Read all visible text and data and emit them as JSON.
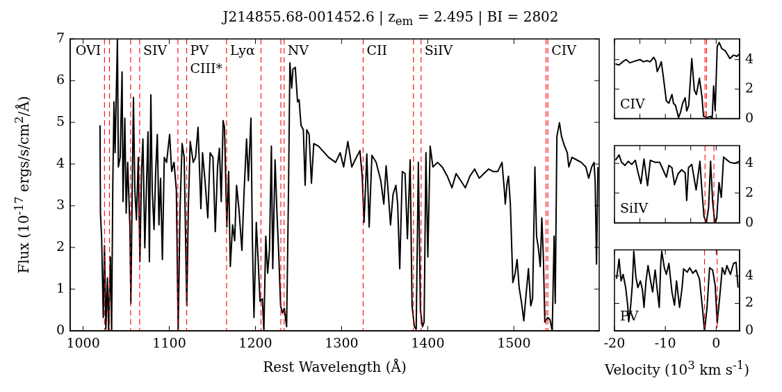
{
  "chart_data": [
    {
      "type": "line",
      "title": "J214855.68-001452.6 | z$_{em}$ = 2.495 | BI = 2802",
      "xlabel": "Rest Wavelength (Å)",
      "ylabel": "Flux (10$^{-17}$ ergs/s/cm$^{2}$/Å)",
      "x": [
        1019.6,
        1020.1,
        1021.5,
        1023.4,
        1024.8,
        1026.4,
        1028.2,
        1029.6,
        1031.7,
        1033.1,
        1034.4,
        1035.8,
        1037.1,
        1039.8,
        1040.9,
        1043.0,
        1045.2,
        1046.3,
        1048.4,
        1050.0,
        1051.7,
        1054.3,
        1055.4,
        1057.0,
        1058.4,
        1060.0,
        1061.9,
        1064.0,
        1065.9,
        1067.8,
        1069.4,
        1071.6,
        1073.7,
        1075.3,
        1076.9,
        1078.6,
        1080.2,
        1082.3,
        1084.2,
        1086.1,
        1088.0,
        1089.9,
        1092.0,
        1094.2,
        1096.9,
        1100.4,
        1102.8,
        1105.5,
        1108.2,
        1110.3,
        1112.5,
        1114.9,
        1117.3,
        1120.3,
        1122.1,
        1124.3,
        1127.8,
        1130.5,
        1133.4,
        1136.7,
        1138.6,
        1141.5,
        1144.7,
        1147.4,
        1150.7,
        1153.4,
        1156.0,
        1158.2,
        1160.3,
        1162.5,
        1164.1,
        1166.8,
        1168.9,
        1170.8,
        1173.5,
        1175.9,
        1178.1,
        1180.8,
        1184.3,
        1186.7,
        1189.7,
        1191.8,
        1194.8,
        1196.4,
        1198.3,
        1201.0,
        1203.1,
        1205.3,
        1208.0,
        1209.8,
        1212.0,
        1214.2,
        1216.3,
        1218.5,
        1220.1,
        1222.8,
        1225.0,
        1227.1,
        1229.2,
        1231.4,
        1233.5,
        1236.2,
        1238.4,
        1240.0,
        1242.1,
        1243.5,
        1246.2,
        1248.9,
        1250.7,
        1252.9,
        1255.6,
        1257.7,
        1259.6,
        1262.3,
        1265.0,
        1267.7,
        1273.1,
        1284.9,
        1293.0,
        1298.4,
        1302.4,
        1307.3,
        1311.8,
        1317.2,
        1321.3,
        1323.9,
        1326.1,
        1329.3,
        1332.0,
        1335.2,
        1340.1,
        1345.5,
        1349.0,
        1351.7,
        1354.3,
        1356.8,
        1359.7,
        1363.0,
        1365.1,
        1367.5,
        1370.5,
        1373.7,
        1376.4,
        1379.6,
        1381.8,
        1384.5,
        1386.6,
        1389.1,
        1391.5,
        1393.9,
        1395.8,
        1397.9,
        1400.1,
        1402.8,
        1406.0,
        1411.4,
        1416.8,
        1422.7,
        1428.1,
        1432.9,
        1438.3,
        1443.7,
        1449.0,
        1454.4,
        1459.8,
        1465.2,
        1470.6,
        1476.0,
        1481.3,
        1486.2,
        1488.9,
        1490.0,
        1492.1,
        1493.7,
        1495.9,
        1498.8,
        1501.5,
        1503.7,
        1506.1,
        1509.0,
        1511.5,
        1514.2,
        1516.9,
        1519.6,
        1521.7,
        1524.4,
        1526.3,
        1528.4,
        1530.6,
        1532.4,
        1534.3,
        1535.9,
        1539.2,
        1541.9,
        1544.5,
        1546.7,
        1548.0,
        1549.9,
        1552.9,
        1555.3,
        1558.8,
        1562.0,
        1563.7,
        1567.4,
        1572.8,
        1578.2,
        1583.5,
        1586.8,
        1590.3,
        1593.0,
        1594.3,
        1595.9,
        1597.6
      ],
      "series": [
        {
          "color": "#000000",
          "values": [
            4.93,
            2.82,
            2.21,
            0.32,
            2.04,
            0.04,
            1.27,
            0,
            1.77,
            0,
            3.43,
            5.49,
            4.27,
            7.0,
            3.93,
            4.16,
            6.21,
            3.1,
            5.1,
            2.82,
            4.04,
            2.49,
            0.66,
            3.38,
            5.6,
            3.38,
            2.66,
            4.16,
            1.66,
            3.82,
            4.6,
            1.99,
            3.6,
            4.77,
            1.66,
            5.66,
            3.38,
            2.43,
            3.82,
            4.71,
            2.54,
            3.66,
            1.71,
            4.16,
            4.04,
            4.71,
            3.82,
            4.04,
            3.38,
            0,
            2.93,
            4.49,
            4.16,
            0.6,
            2.93,
            4.54,
            4.04,
            4.16,
            4.88,
            2.93,
            4.27,
            3.6,
            2.71,
            4.27,
            4.16,
            2.38,
            3.93,
            4.38,
            3.1,
            5.04,
            4.88,
            2.49,
            3.82,
            1.54,
            2.54,
            2.16,
            3.49,
            2.93,
            1.93,
            3.27,
            4.6,
            3.6,
            5.1,
            2.27,
            0.32,
            2.6,
            1.71,
            0.71,
            0.77,
            0,
            2.27,
            1.38,
            1.93,
            4.43,
            1.49,
            4.1,
            2.82,
            1.82,
            0.6,
            0.43,
            0.54,
            0.1,
            3.38,
            6.43,
            5.82,
            6.27,
            6.32,
            5.49,
            5.54,
            4.93,
            4.82,
            3.49,
            4.82,
            4.71,
            3.54,
            4.49,
            4.43,
            4.16,
            4.04,
            4.27,
            3.93,
            4.54,
            3.93,
            4.16,
            4.32,
            3.71,
            2.6,
            4.24,
            2.49,
            4.21,
            4.04,
            3.6,
            3.04,
            3.96,
            3.27,
            2.54,
            3.27,
            3.49,
            3.04,
            1.49,
            3.82,
            3.77,
            2.21,
            4.1,
            0.6,
            0.1,
            0.04,
            4.04,
            0.49,
            0.1,
            0.21,
            4.27,
            1.77,
            4.43,
            3.93,
            4.04,
            3.93,
            3.71,
            3.43,
            3.77,
            3.6,
            3.43,
            3.71,
            3.88,
            3.66,
            3.77,
            3.88,
            3.82,
            3.82,
            4.04,
            3.38,
            3.04,
            3.54,
            3.71,
            3.04,
            1.16,
            1.38,
            1.71,
            1.04,
            0.66,
            0.24,
            0.88,
            1.49,
            0.6,
            0.77,
            3.93,
            2.27,
            1.99,
            1.54,
            2.71,
            1.71,
            0.21,
            0.32,
            0.27,
            0,
            2.27,
            0.66,
            4.66,
            4.99,
            4.66,
            4.43,
            4.27,
            3.93,
            4.16,
            4.1,
            4.04,
            3.93,
            3.66,
            3.93,
            4.04,
            3.6,
            1.6,
            3.93
          ]
        }
      ],
      "xlim": [
        985,
        1599
      ],
      "ylim": [
        0,
        7
      ],
      "xticks": [
        1000,
        1100,
        1200,
        1300,
        1400,
        1500
      ],
      "yticks": [
        0,
        1,
        2,
        3,
        4,
        5,
        6,
        7
      ],
      "ref_lines": [
        {
          "axis": "x",
          "value": 1024.8,
          "color": "#ff0000",
          "line_style": "dashed"
        },
        {
          "axis": "x",
          "value": 1030.6,
          "color": "#ff0000",
          "line_style": "dashed"
        },
        {
          "axis": "x",
          "value": 1055.1,
          "color": "#ff0000",
          "line_style": "dashed"
        },
        {
          "axis": "x",
          "value": 1065.6,
          "color": "#ff0000",
          "line_style": "dashed"
        },
        {
          "axis": "x",
          "value": 1110.0,
          "color": "#ff0000",
          "line_style": "dashed"
        },
        {
          "axis": "x",
          "value": 1120.2,
          "color": "#ff0000",
          "line_style": "dashed"
        },
        {
          "axis": "x",
          "value": 1166.5,
          "color": "#ff0000",
          "line_style": "dashed"
        },
        {
          "axis": "x",
          "value": 1206.4,
          "color": "#ff0000",
          "line_style": "dashed"
        },
        {
          "axis": "x",
          "value": 1229.5,
          "color": "#ff0000",
          "line_style": "dashed"
        },
        {
          "axis": "x",
          "value": 1233.3,
          "color": "#ff0000",
          "line_style": "dashed"
        },
        {
          "axis": "x",
          "value": 1325.0,
          "color": "#ff0000",
          "line_style": "dashed"
        },
        {
          "axis": "x",
          "value": 1383.4,
          "color": "#ff0000",
          "line_style": "dashed"
        },
        {
          "axis": "x",
          "value": 1392.3,
          "color": "#ff0000",
          "line_style": "dashed"
        },
        {
          "axis": "x",
          "value": 1537.3,
          "color": "#ff0000",
          "line_style": "dashed"
        },
        {
          "axis": "x",
          "value": 1539.4,
          "color": "#ff0000",
          "line_style": "dashed"
        }
      ],
      "annotations": [
        {
          "text": "OVI",
          "x": 1024.8,
          "y": 6.7
        },
        {
          "text": "SIV",
          "x": 1065.6,
          "y": 6.7
        },
        {
          "text": "PV",
          "x": 1120.2,
          "y": 6.7
        },
        {
          "text": "CIII*",
          "x": 1120.2,
          "y": 6.27
        },
        {
          "text": "Lyα",
          "x": 1166.5,
          "y": 6.7
        },
        {
          "text": "NV",
          "x": 1233.3,
          "y": 6.7
        },
        {
          "text": "CII",
          "x": 1325.0,
          "y": 6.7
        },
        {
          "text": "SiIV",
          "x": 1392.3,
          "y": 6.7
        },
        {
          "text": "CIV",
          "x": 1539.4,
          "y": 6.7
        }
      ]
    },
    {
      "type": "line",
      "x": [
        -19.8,
        -19.1,
        -18.4,
        -17.7,
        -17.0,
        -16.4,
        -15.7,
        -15.0,
        -14.3,
        -13.6,
        -13.0,
        -12.3,
        -11.9,
        -11.6,
        -11.1,
        -10.8,
        -10.5,
        -9.8,
        -9.3,
        -8.7,
        -8.4,
        -8.0,
        -7.4,
        -7.0,
        -6.6,
        -6.1,
        -5.8,
        -5.4,
        -4.8,
        -4.3,
        -3.9,
        -3.3,
        -2.8,
        -2.5,
        -1.8,
        -1.1,
        -0.8,
        -0.5,
        -0.2,
        0.2,
        0.6,
        1.1,
        1.8,
        2.7,
        3.4,
        4.1,
        4.5
      ],
      "series": [
        {
          "color": "#000000",
          "values": [
            3.7,
            3.63,
            3.85,
            4.0,
            3.78,
            3.85,
            3.93,
            4.0,
            3.85,
            3.93,
            3.85,
            4.15,
            3.93,
            3.19,
            3.56,
            3.85,
            3.11,
            1.19,
            1.04,
            1.63,
            1.04,
            0.89,
            0.07,
            0.44,
            1.04,
            1.41,
            0.52,
            0.89,
            4.07,
            1.93,
            1.63,
            2.74,
            1.48,
            0.15,
            0.07,
            0.15,
            0,
            2.22,
            0.52,
            4.89,
            5.16,
            4.74,
            4.59,
            4.07,
            4.3,
            4.22,
            4.37
          ]
        }
      ],
      "xlim": [
        -20,
        4.6
      ],
      "ylim": [
        0,
        5.4
      ],
      "xticks": [
        -20,
        -15,
        -10,
        -5,
        0
      ],
      "yticks": [
        0,
        2,
        4
      ],
      "tick_labels": "y",
      "ref_lines": [
        {
          "axis": "x",
          "value": -2.2,
          "color": "#ff0000",
          "line_style": "dashed"
        },
        {
          "axis": "x",
          "value": -1.9,
          "color": "#ff0000",
          "line_style": "dashed"
        }
      ],
      "annotations": [
        "CIV"
      ]
    },
    {
      "type": "line",
      "x": [
        -19.8,
        -19.1,
        -18.6,
        -17.95,
        -17.3,
        -16.6,
        -15.9,
        -15.4,
        -14.8,
        -14.2,
        -13.5,
        -12.95,
        -12.0,
        -11.1,
        -10.45,
        -9.8,
        -9.3,
        -8.7,
        -8.2,
        -7.5,
        -6.8,
        -6.1,
        -5.8,
        -5.45,
        -4.8,
        -3.95,
        -3.2,
        -2.8,
        -2.4,
        -1.95,
        -1.5,
        -1.1,
        -0.7,
        -0.3,
        0.1,
        0.55,
        1.0,
        1.45,
        1.9,
        2.7,
        3.6,
        4.5
      ],
      "series": [
        {
          "color": "#000000",
          "values": [
            4.21,
            4.57,
            4.07,
            3.86,
            4.14,
            3.93,
            4.21,
            3.43,
            2.64,
            4.29,
            2.5,
            4.21,
            4.07,
            4.07,
            3.57,
            3.07,
            3.86,
            3.71,
            2.57,
            3.29,
            3.57,
            3.36,
            1.5,
            3.71,
            3.93,
            2.21,
            4.14,
            2.14,
            0.43,
            0,
            1.0,
            4.14,
            1.43,
            0.07,
            0.29,
            2.71,
            1.71,
            4.43,
            4.29,
            4.07,
            4.0,
            4.14
          ]
        }
      ],
      "xlim": [
        -20,
        4.6
      ],
      "ylim": [
        0,
        5.2
      ],
      "xticks": [
        -20,
        -15,
        -10,
        -5,
        0
      ],
      "yticks": [
        0,
        2,
        4
      ],
      "tick_labels": "y",
      "ref_lines": [
        {
          "axis": "x",
          "value": -2.2,
          "color": "#ff0000",
          "line_style": "dashed"
        },
        {
          "axis": "x",
          "value": -0.45,
          "color": "#ff0000",
          "line_style": "dashed"
        }
      ],
      "annotations": [
        "SiIV"
      ]
    },
    {
      "type": "line",
      "xlabel": "Velocity (10$^{3}$ km s$^{-1}$)",
      "x": [
        -19.6,
        -19.3,
        -19.1,
        -18.7,
        -18.3,
        -17.8,
        -17.4,
        -17.2,
        -16.8,
        -16.5,
        -16.2,
        -15.8,
        -15.4,
        -14.9,
        -14.5,
        -14.2,
        -13.8,
        -13.4,
        -12.9,
        -12.5,
        -12.0,
        -11.6,
        -11.2,
        -10.9,
        -10.7,
        -10.2,
        -9.8,
        -9.3,
        -8.7,
        -8.2,
        -7.8,
        -7.2,
        -6.7,
        -6.4,
        -5.7,
        -5.2,
        -4.6,
        -4.0,
        -3.3,
        -2.8,
        -2.3,
        -1.8,
        -1.3,
        -0.7,
        -0.2,
        0.2,
        0.7,
        1.2,
        1.7,
        2.1,
        2.8,
        3.4,
        3.9,
        4.3
      ],
      "series": [
        {
          "color": "#000000",
          "values": [
            3.79,
            4.59,
            5.23,
            3.63,
            4.11,
            3.15,
            1.87,
            0.67,
            1.87,
            3.31,
            5.79,
            3.95,
            3.15,
            3.63,
            2.99,
            1.71,
            3.63,
            4.75,
            3.63,
            2.83,
            4.43,
            2.99,
            1.71,
            4.91,
            5.79,
            4.59,
            4.11,
            4.91,
            2.83,
            1.87,
            3.63,
            1.71,
            3.15,
            4.51,
            4.27,
            4.59,
            4.19,
            4.43,
            3.79,
            2.03,
            0,
            1.71,
            4.59,
            4.43,
            3.31,
            0.59,
            2.51,
            4.59,
            4.11,
            4.75,
            4.11,
            4.91,
            4.99,
            3.15
          ]
        }
      ],
      "xlim": [
        -20,
        4.6
      ],
      "ylim": [
        0,
        5.9
      ],
      "xticks": [
        -20,
        -10,
        0
      ],
      "yticks": [
        0,
        2,
        4
      ],
      "ref_lines": [
        {
          "axis": "x",
          "value": -2.3,
          "color": "#ff0000",
          "line_style": "dashed"
        },
        {
          "axis": "x",
          "value": 0.2,
          "color": "#ff0000",
          "line_style": "dashed"
        }
      ],
      "annotations": [
        "PV"
      ]
    }
  ]
}
